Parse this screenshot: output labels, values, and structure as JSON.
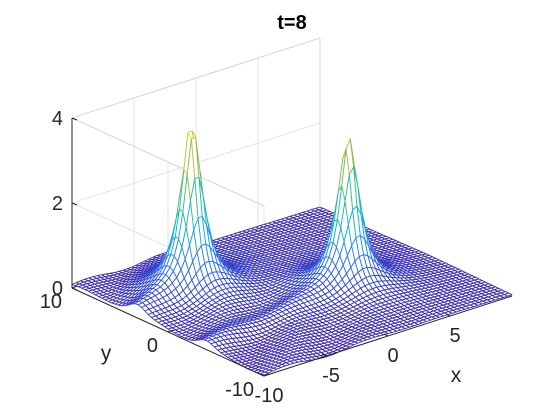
{
  "chart_data": {
    "type": "surface",
    "title": "t=8",
    "xlabel": "x",
    "ylabel": "y",
    "zlabel": "",
    "xlim": [
      -10,
      10
    ],
    "ylim": [
      -10,
      10
    ],
    "zlim": [
      0,
      4
    ],
    "x_ticks": [
      {
        "value": -10,
        "label": "-10"
      },
      {
        "value": -5,
        "label": "-5"
      },
      {
        "value": 0,
        "label": "0"
      },
      {
        "value": 5,
        "label": "5"
      }
    ],
    "y_ticks": [
      {
        "value": -10,
        "label": "-10"
      },
      {
        "value": 0,
        "label": "0"
      },
      {
        "value": 10,
        "label": "10"
      }
    ],
    "z_ticks": [
      {
        "value": 0,
        "label": "0"
      },
      {
        "value": 2,
        "label": "2"
      },
      {
        "value": 4,
        "label": "4"
      }
    ],
    "peaks": [
      {
        "x": -5,
        "y": 4,
        "z": 4.0
      },
      {
        "x": 3,
        "y": -2,
        "z": 3.5
      }
    ],
    "colormap": [
      "#3e26a8",
      "#2b6ff6",
      "#13b5d9",
      "#3cc27e",
      "#c0bc3c",
      "#f8f817"
    ],
    "grid": true,
    "legend": "none"
  }
}
